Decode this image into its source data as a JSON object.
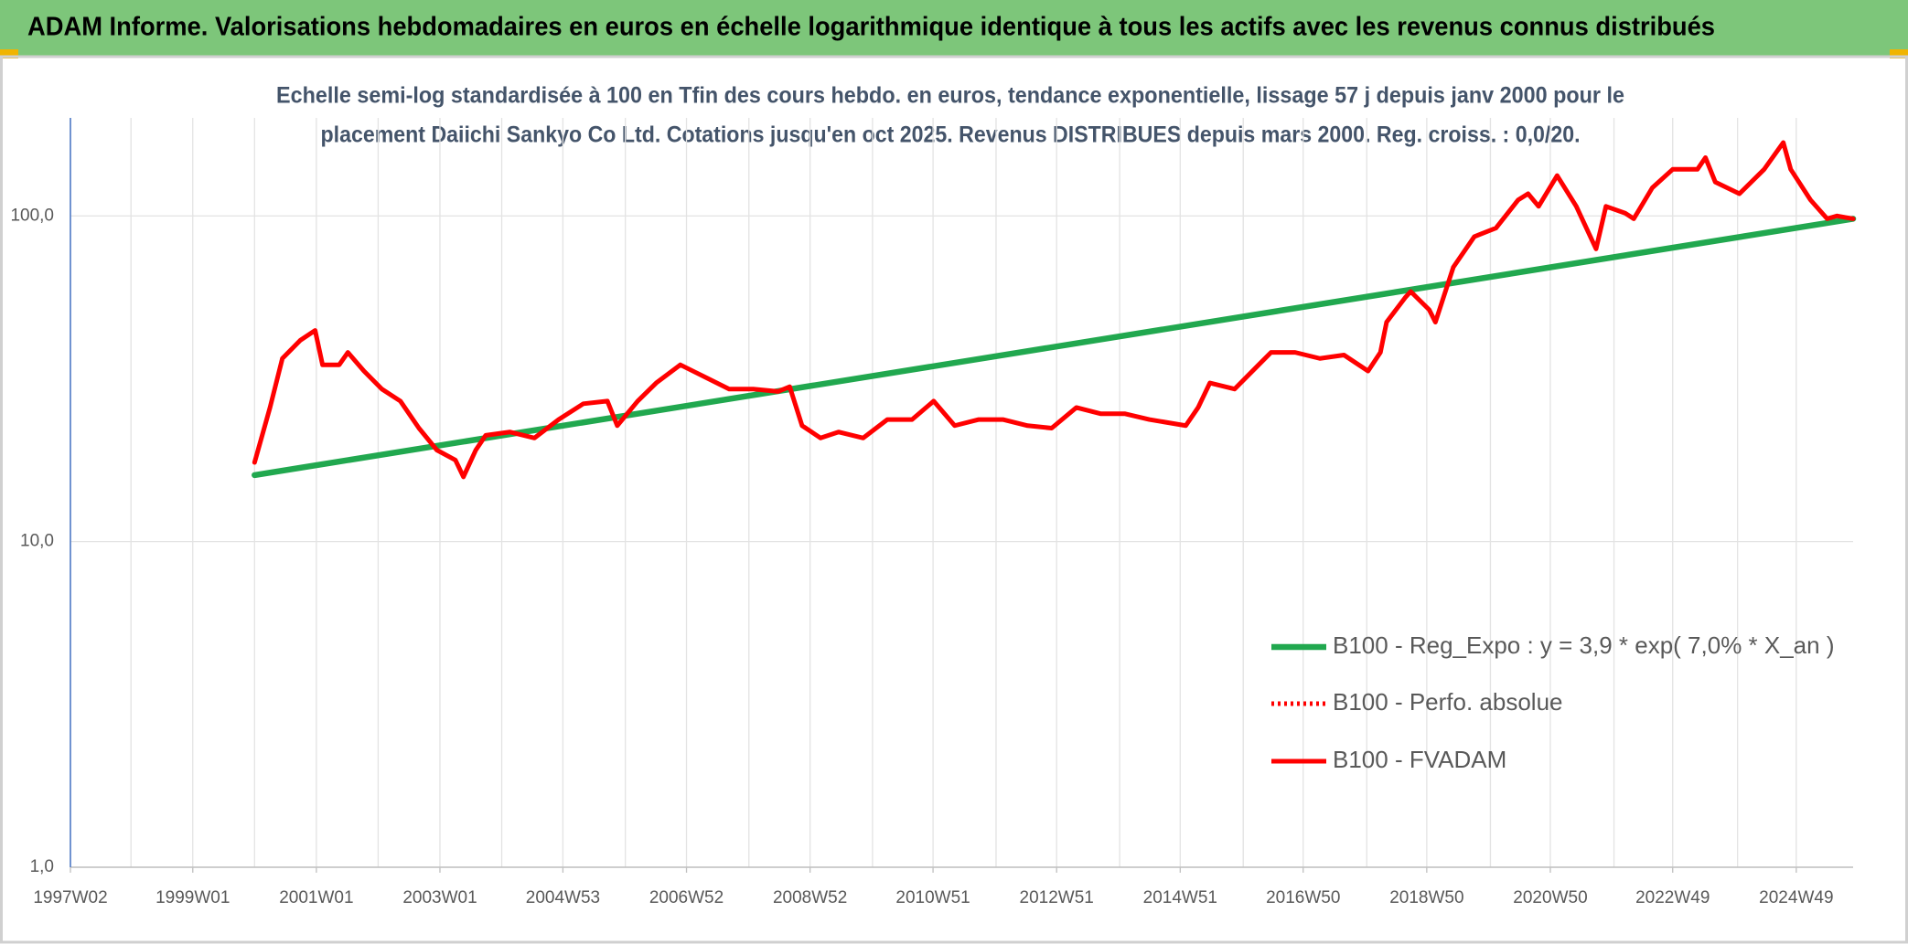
{
  "chart_data": {
    "type": "line",
    "title": "ADAM Informe. Valorisations hebdomadaires en euros en échelle logarithmique identique à tous les actifs avec les revenus connus distribués",
    "subtitle": [
      "Echelle semi-log standardisée à 100 en Tfin des cours hebdo. en euros, tendance exponentielle, lissage 57 j depuis janv 2000 pour le",
      "placement Daiichi Sankyo Co Ltd. Cotations jusqu'en oct 2025. Revenus DISTRIBUES depuis mars 2000. Reg. croiss. : 0,0/20."
    ],
    "log_scale": true,
    "ylim": [
      1,
      200
    ],
    "yticks": [
      {
        "value": 1,
        "label": "1,0"
      },
      {
        "value": 10,
        "label": "10,0"
      },
      {
        "value": 100,
        "label": "100,0"
      }
    ],
    "xlim": [
      1997.02,
      2025.87
    ],
    "xticks": [
      {
        "value": 1997.02,
        "label": "1997W02"
      },
      {
        "value": 1999.0,
        "label": "1999W01"
      },
      {
        "value": 2001.0,
        "label": "2001W01"
      },
      {
        "value": 2003.0,
        "label": "2003W01"
      },
      {
        "value": 2004.99,
        "label": "2004W53"
      },
      {
        "value": 2006.99,
        "label": "2006W52"
      },
      {
        "value": 2008.99,
        "label": "2008W52"
      },
      {
        "value": 2010.98,
        "label": "2010W51"
      },
      {
        "value": 2012.98,
        "label": "2012W51"
      },
      {
        "value": 2014.98,
        "label": "2014W51"
      },
      {
        "value": 2016.97,
        "label": "2016W50"
      },
      {
        "value": 2018.97,
        "label": "2018W50"
      },
      {
        "value": 2020.97,
        "label": "2020W50"
      },
      {
        "value": 2022.95,
        "label": "2022W49"
      },
      {
        "value": 2024.95,
        "label": "2024W49"
      }
    ],
    "xminor_ticks": [
      1998,
      2000,
      2002,
      2004,
      2006,
      2008,
      2010,
      2012,
      2014,
      2016,
      2018,
      2020,
      2022,
      2024
    ],
    "grid": true,
    "legend_position": "right",
    "series": [
      {
        "name": "B100 - Reg_Expo : y = 3,9 * exp( 7,0% *  X_an )",
        "color": "#21a84f",
        "style": "solid",
        "x": [
          2000.0,
          2025.87
        ],
        "values": [
          16,
          98
        ]
      },
      {
        "name": "B100 - Perfo. absolue",
        "color": "#ff0000",
        "style": "dotted",
        "x": [],
        "values": []
      },
      {
        "name": "B100 - FVADAM",
        "color": "#ff0000",
        "style": "solid",
        "x": [
          2000.0,
          2000.25,
          2000.45,
          2000.74,
          2000.98,
          2001.1,
          2001.37,
          2001.51,
          2001.77,
          2002.06,
          2002.36,
          2002.66,
          2002.95,
          2003.25,
          2003.38,
          2003.58,
          2003.74,
          2004.13,
          2004.53,
          2004.92,
          2005.32,
          2005.71,
          2005.87,
          2006.2,
          2006.5,
          2006.89,
          2007.29,
          2007.68,
          2008.07,
          2008.47,
          2008.66,
          2008.86,
          2009.16,
          2009.45,
          2009.85,
          2010.24,
          2010.64,
          2010.99,
          2011.33,
          2011.72,
          2012.11,
          2012.51,
          2012.9,
          2013.3,
          2013.69,
          2014.08,
          2014.48,
          2015.07,
          2015.27,
          2015.46,
          2015.86,
          2016.25,
          2016.45,
          2016.84,
          2017.24,
          2017.63,
          2018.02,
          2018.22,
          2018.32,
          2018.62,
          2018.71,
          2019.01,
          2019.11,
          2019.4,
          2019.74,
          2020.09,
          2020.45,
          2020.61,
          2020.78,
          2021.08,
          2021.39,
          2021.71,
          2021.87,
          2022.18,
          2022.32,
          2022.62,
          2022.95,
          2023.35,
          2023.48,
          2023.64,
          2024.03,
          2024.43,
          2024.74,
          2024.86,
          2025.18,
          2025.45,
          2025.61,
          2025.87
        ],
        "values": [
          17.5,
          25.8,
          36.5,
          41.5,
          44.5,
          34.9,
          34.9,
          38.1,
          33.4,
          29.4,
          27.0,
          22.3,
          19.1,
          17.8,
          15.8,
          19.1,
          21.2,
          21.7,
          20.8,
          23.7,
          26.5,
          27.0,
          22.7,
          27.0,
          30.7,
          34.9,
          32.0,
          29.4,
          29.4,
          28.9,
          29.9,
          22.7,
          20.8,
          21.7,
          20.8,
          23.7,
          23.7,
          27.0,
          22.7,
          23.7,
          23.7,
          22.7,
          22.3,
          25.8,
          24.7,
          24.7,
          23.7,
          22.7,
          25.8,
          30.7,
          29.4,
          34.9,
          38.1,
          38.1,
          36.5,
          37.4,
          33.4,
          38.1,
          47.2,
          56.1,
          58.6,
          51.5,
          47.2,
          69.6,
          86.4,
          91.8,
          112,
          117,
          107,
          133,
          107,
          79.2,
          107,
          102,
          98,
          122,
          139,
          139,
          151,
          127,
          117,
          139,
          168,
          139,
          112,
          98,
          100,
          98
        ]
      }
    ]
  }
}
